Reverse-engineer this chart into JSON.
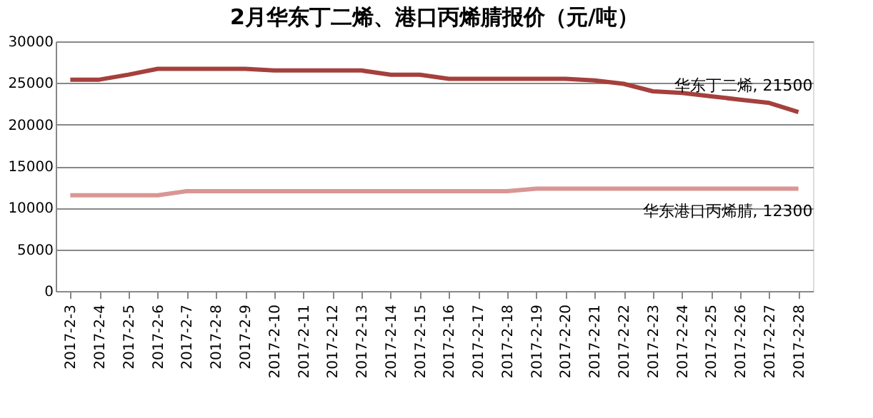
{
  "chart_data": {
    "type": "line",
    "title": "2月华东丁二烯、港口丙烯腈报价（元/吨）",
    "categories": [
      "2017-2-3",
      "2017-2-4",
      "2017-2-5",
      "2017-2-6",
      "2017-2-7",
      "2017-2-8",
      "2017-2-9",
      "2017-2-10",
      "2017-2-11",
      "2017-2-12",
      "2017-2-13",
      "2017-2-14",
      "2017-2-15",
      "2017-2-16",
      "2017-2-17",
      "2017-2-18",
      "2017-2-19",
      "2017-2-20",
      "2017-2-21",
      "2017-2-22",
      "2017-2-23",
      "2017-2-24",
      "2017-2-25",
      "2017-2-26",
      "2017-2-27",
      "2017-2-28"
    ],
    "series": [
      {
        "name": "华东丁二烯",
        "color": "#a5403c",
        "values": [
          25400,
          25400,
          26000,
          26700,
          26700,
          26700,
          26700,
          26500,
          26500,
          26500,
          26500,
          26000,
          26000,
          25500,
          25500,
          25500,
          25500,
          25500,
          25300,
          24900,
          24000,
          23800,
          23400,
          23000,
          22600,
          21500
        ],
        "value_labels": [
          null,
          null,
          null,
          null,
          null,
          null,
          null,
          null,
          null,
          null,
          null,
          null,
          null,
          null,
          null,
          null,
          null,
          null,
          null,
          null,
          null,
          null,
          null,
          null,
          null,
          ", 21500"
        ]
      },
      {
        "name": "华东港口丙烯腈",
        "color": "#d99694",
        "values": [
          11500,
          11500,
          11500,
          11500,
          12000,
          12000,
          12000,
          12000,
          12000,
          12000,
          12000,
          12000,
          12000,
          12000,
          12000,
          12000,
          12300,
          12300,
          12300,
          12300,
          12300,
          12300,
          12300,
          12300,
          12300,
          12300
        ],
        "value_labels": [
          null,
          null,
          null,
          null,
          null,
          null,
          null,
          null,
          null,
          null,
          null,
          null,
          null,
          null,
          null,
          null,
          null,
          null,
          null,
          null,
          null,
          null,
          null,
          null,
          null,
          ", 12300"
        ]
      }
    ],
    "ylim": [
      0,
      30000
    ],
    "yticks": [
      0,
      5000,
      10000,
      15000,
      20000,
      25000,
      30000
    ],
    "grid": "y",
    "legend": false,
    "line_style": "solid",
    "marker": "none"
  }
}
